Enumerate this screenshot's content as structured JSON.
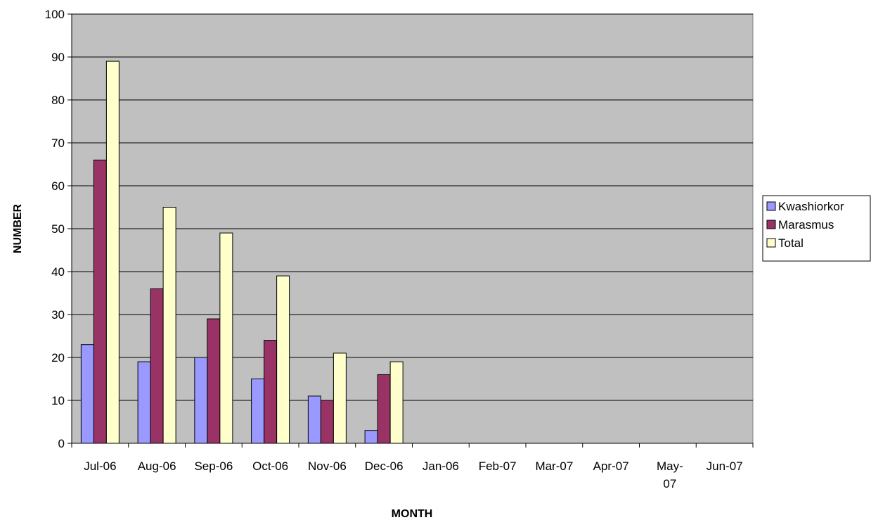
{
  "chart_data": {
    "type": "bar",
    "xlabel": "MONTH",
    "ylabel": "NUMBER",
    "ylim": [
      0,
      100
    ],
    "yticks": [
      0,
      10,
      20,
      30,
      40,
      50,
      60,
      70,
      80,
      90,
      100
    ],
    "grid": true,
    "legend_position": "right",
    "plot_background": "#c0c0c0",
    "categories": [
      "Jul-06",
      "Aug-06",
      "Sep-06",
      "Oct-06",
      "Nov-06",
      "Dec-06",
      "Jan-06",
      "Feb-07",
      "Mar-07",
      "Apr-07",
      "May-07",
      "Jun-07"
    ],
    "series": [
      {
        "name": "Kwashiorkor",
        "color": "#9999ff",
        "values": [
          23,
          19,
          20,
          15,
          11,
          3,
          null,
          null,
          null,
          null,
          null,
          null
        ]
      },
      {
        "name": "Marasmus",
        "color": "#993366",
        "values": [
          66,
          36,
          29,
          24,
          10,
          16,
          null,
          null,
          null,
          null,
          null,
          null
        ]
      },
      {
        "name": "Total",
        "color": "#ffffcc",
        "values": [
          89,
          55,
          49,
          39,
          21,
          19,
          null,
          null,
          null,
          null,
          null,
          null
        ]
      }
    ]
  }
}
